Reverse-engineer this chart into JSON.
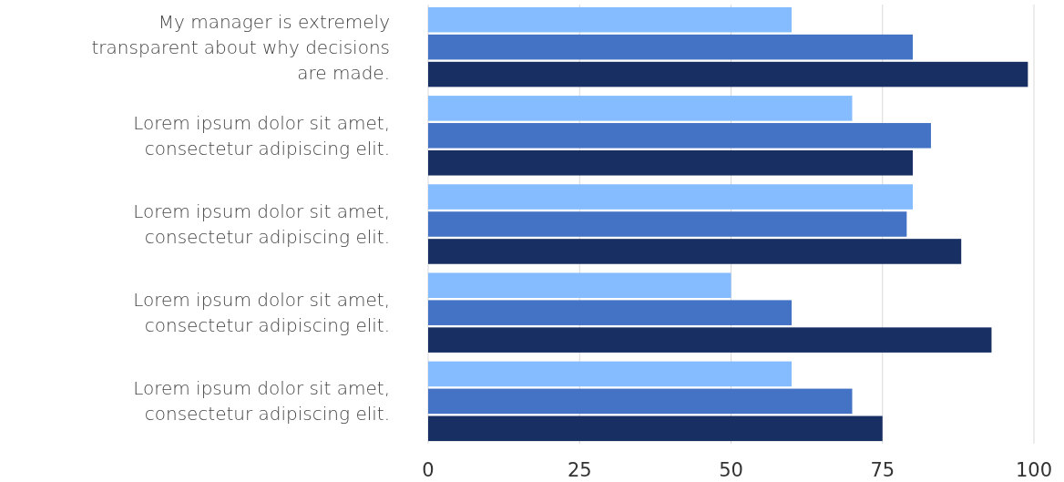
{
  "chart_data": {
    "type": "bar",
    "orientation": "horizontal",
    "categories": [
      "My manager is extremely transparent about why decisions are made.",
      "Lorem ipsum dolor sit amet, consectetur adipiscing elit.",
      "Lorem ipsum dolor sit amet, consectetur adipiscing elit.",
      "Lorem ipsum dolor sit amet, consectetur adipiscing elit.",
      "Lorem ipsum dolor sit amet, consectetur adipiscing elit."
    ],
    "series": [
      {
        "color": "#85bbff",
        "values": [
          60,
          70,
          80,
          50,
          60
        ]
      },
      {
        "color": "#4472c4",
        "values": [
          80,
          83,
          79,
          60,
          70
        ]
      },
      {
        "color": "#172f63",
        "values": [
          99,
          80,
          88,
          93,
          75
        ]
      }
    ],
    "xlim": [
      0,
      100
    ],
    "xticks": [
      0,
      25,
      50,
      75,
      100
    ],
    "grid": "x"
  }
}
